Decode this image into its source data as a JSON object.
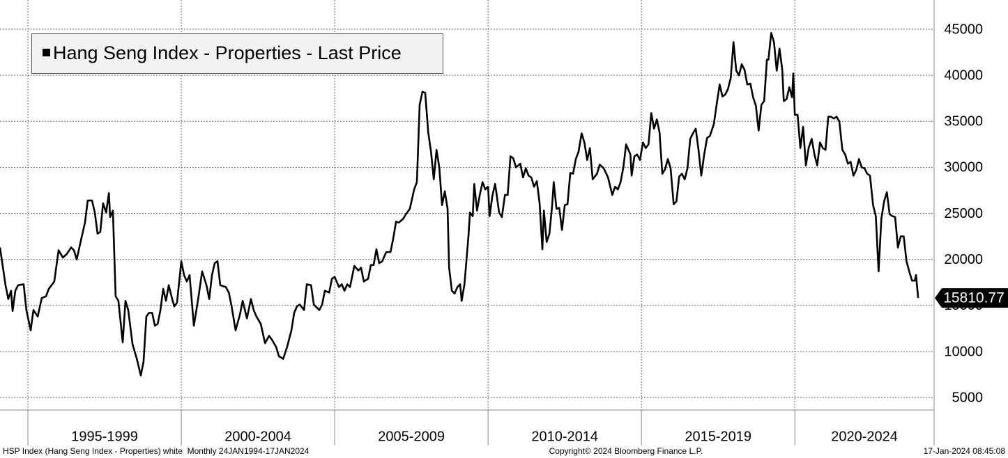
{
  "chart_data": {
    "type": "line",
    "series": [
      {
        "name": "Hang Seng Index - Properties - Last Price",
        "color": "#000000",
        "x": [
          1994.09,
          1994.27,
          1994.36,
          1994.45,
          1994.5,
          1994.59,
          1994.68,
          1994.86,
          1994.95,
          1995.09,
          1995.18,
          1995.32,
          1995.45,
          1995.59,
          1995.68,
          1995.86,
          1996.0,
          1996.14,
          1996.27,
          1996.41,
          1996.5,
          1996.59,
          1996.73,
          1996.86,
          1996.95,
          1997.09,
          1997.18,
          1997.27,
          1997.36,
          1997.45,
          1997.55,
          1997.64,
          1997.68,
          1997.77,
          1997.86,
          1997.95,
          1998.09,
          1998.18,
          1998.27,
          1998.41,
          1998.55,
          1998.68,
          1998.77,
          1998.86,
          1998.95,
          1999.05,
          1999.14,
          1999.23,
          1999.32,
          1999.41,
          1999.5,
          1999.59,
          1999.68,
          1999.77,
          1999.86,
          2000.0,
          2000.09,
          2000.18,
          2000.27,
          2000.41,
          2000.55,
          2000.68,
          2000.82,
          2000.91,
          2001.0,
          2001.09,
          2001.18,
          2001.27,
          2001.45,
          2001.55,
          2001.64,
          2001.77,
          2001.91,
          2002.0,
          2002.14,
          2002.27,
          2002.36,
          2002.45,
          2002.59,
          2002.73,
          2002.86,
          2002.95,
          2003.09,
          2003.18,
          2003.32,
          2003.45,
          2003.59,
          2003.68,
          2003.77,
          2003.86,
          2004.0,
          2004.09,
          2004.23,
          2004.32,
          2004.5,
          2004.59,
          2004.68,
          2004.82,
          2004.91,
          2005.0,
          2005.14,
          2005.23,
          2005.32,
          2005.41,
          2005.5,
          2005.64,
          2005.77,
          2005.86,
          2005.95,
          2006.09,
          2006.18,
          2006.27,
          2006.36,
          2006.45,
          2006.55,
          2006.68,
          2006.82,
          2006.91,
          2007.0,
          2007.09,
          2007.23,
          2007.32,
          2007.45,
          2007.59,
          2007.68,
          2007.77,
          2007.86,
          2007.95,
          2008.05,
          2008.14,
          2008.23,
          2008.32,
          2008.41,
          2008.5,
          2008.59,
          2008.68,
          2008.73,
          2008.82,
          2008.91,
          2009.0,
          2009.09,
          2009.14,
          2009.23,
          2009.36,
          2009.41,
          2009.5,
          2009.55,
          2009.64,
          2009.73,
          2009.82,
          2009.91,
          2010.0,
          2010.05,
          2010.14,
          2010.23,
          2010.36,
          2010.45,
          2010.55,
          2010.64,
          2010.73,
          2010.82,
          2010.91,
          2011.05,
          2011.14,
          2011.23,
          2011.32,
          2011.41,
          2011.5,
          2011.59,
          2011.68,
          2011.77,
          2011.82,
          2011.91,
          2012.0,
          2012.09,
          2012.14,
          2012.23,
          2012.32,
          2012.41,
          2012.5,
          2012.59,
          2012.68,
          2012.77,
          2012.86,
          2012.95,
          2013.05,
          2013.14,
          2013.23,
          2013.32,
          2013.41,
          2013.55,
          2013.64,
          2013.77,
          2013.91,
          2014.05,
          2014.14,
          2014.23,
          2014.32,
          2014.41,
          2014.5,
          2014.64,
          2014.68,
          2014.77,
          2014.86,
          2014.95,
          2015.05,
          2015.14,
          2015.23,
          2015.32,
          2015.41,
          2015.5,
          2015.59,
          2015.68,
          2015.77,
          2015.86,
          2015.95,
          2016.05,
          2016.14,
          2016.23,
          2016.32,
          2016.41,
          2016.5,
          2016.59,
          2016.68,
          2016.77,
          2016.86,
          2016.95,
          2017.05,
          2017.14,
          2017.23,
          2017.36,
          2017.45,
          2017.55,
          2017.64,
          2017.73,
          2017.82,
          2017.91,
          2018.0,
          2018.09,
          2018.18,
          2018.27,
          2018.36,
          2018.45,
          2018.55,
          2018.64,
          2018.73,
          2018.82,
          2018.91,
          2019.0,
          2019.09,
          2019.14,
          2019.23,
          2019.32,
          2019.41,
          2019.5,
          2019.59,
          2019.64,
          2019.73,
          2019.82,
          2019.91,
          2019.95,
          2020.0,
          2020.09,
          2020.18,
          2020.27,
          2020.36,
          2020.45,
          2020.55,
          2020.64,
          2020.73,
          2020.82,
          2020.91,
          2021.0,
          2021.09,
          2021.18,
          2021.27,
          2021.36,
          2021.45,
          2021.55,
          2021.64,
          2021.73,
          2021.82,
          2021.91,
          2022.0,
          2022.09,
          2022.18,
          2022.27,
          2022.36,
          2022.45,
          2022.55,
          2022.64,
          2022.73,
          2022.82,
          2022.91,
          2023.0,
          2023.09,
          2023.18,
          2023.27,
          2023.36,
          2023.45,
          2023.55,
          2023.64,
          2023.73,
          2023.82,
          2023.91,
          2023.95,
          2024.02
        ],
        "values": [
          21300,
          17200,
          15700,
          16600,
          14400,
          16600,
          17200,
          17300,
          14500,
          12300,
          14500,
          13800,
          15800,
          16000,
          16800,
          17600,
          21000,
          20200,
          20600,
          21300,
          21000,
          20000,
          22100,
          24000,
          26400,
          26400,
          25100,
          22800,
          23000,
          26100,
          25100,
          27200,
          24600,
          25300,
          16000,
          15500,
          11000,
          15500,
          14500,
          10800,
          9200,
          7400,
          8900,
          13800,
          14200,
          14200,
          12800,
          13000,
          14500,
          16800,
          15500,
          17200,
          16000,
          14900,
          15300,
          19800,
          18300,
          17600,
          18300,
          12800,
          15700,
          18700,
          17200,
          15700,
          18300,
          19600,
          19800,
          17200,
          17000,
          16400,
          14900,
          12300,
          14000,
          15500,
          13600,
          15700,
          14500,
          13800,
          13000,
          10900,
          11700,
          11300,
          10500,
          9500,
          9200,
          10500,
          12300,
          14200,
          14900,
          15100,
          14500,
          17300,
          17200,
          15100,
          14500,
          15100,
          16600,
          16400,
          17900,
          18100,
          17000,
          17300,
          16600,
          17300,
          17000,
          19300,
          18800,
          19100,
          17600,
          17900,
          19400,
          19400,
          21100,
          19600,
          19800,
          20800,
          20800,
          22300,
          24100,
          24000,
          24400,
          24900,
          25500,
          27600,
          28400,
          36800,
          38200,
          38100,
          33800,
          31700,
          28700,
          31900,
          30000,
          25900,
          27400,
          25500,
          19100,
          16600,
          16300,
          17000,
          17300,
          15500,
          17300,
          22500,
          25100,
          24700,
          28200,
          25300,
          27000,
          28400,
          27600,
          27900,
          24700,
          26900,
          28200,
          25100,
          24600,
          27000,
          27000,
          31200,
          31000,
          30000,
          30400,
          28900,
          29900,
          29100,
          28900,
          27900,
          28500,
          26100,
          21100,
          25300,
          21900,
          22800,
          25900,
          28400,
          25500,
          25600,
          23200,
          25900,
          26000,
          29400,
          29300,
          30900,
          31700,
          33700,
          32700,
          30800,
          32100,
          28700,
          29300,
          30300,
          29900,
          28900,
          27000,
          27900,
          27600,
          28400,
          30000,
          32500,
          31400,
          29100,
          31200,
          31400,
          30800,
          32700,
          32100,
          32500,
          35900,
          34200,
          35200,
          33800,
          29300,
          29800,
          30900,
          29900,
          26000,
          26300,
          29000,
          29300,
          28700,
          29900,
          33100,
          33700,
          34200,
          31900,
          29100,
          31500,
          33200,
          33400,
          34700,
          36800,
          39000,
          37700,
          37900,
          38500,
          39700,
          43600,
          40500,
          40000,
          41200,
          40600,
          39000,
          39100,
          37600,
          36700,
          34000,
          36800,
          37200,
          41700,
          41700,
          44600,
          43600,
          40500,
          42900,
          40600,
          37200,
          37400,
          38700,
          37600,
          40200,
          35700,
          35700,
          32100,
          34400,
          30200,
          32100,
          33100,
          31400,
          30200,
          32700,
          32100,
          31900,
          35500,
          35500,
          35300,
          35500,
          35000,
          31900,
          31400,
          30400,
          30600,
          29100,
          29700,
          30900,
          30000,
          29900,
          29300,
          29100,
          25900,
          24700,
          18700,
          24400,
          26300,
          27300,
          24900,
          24700,
          24600,
          21300,
          22500,
          22500,
          19800,
          18700,
          17700,
          17700,
          18300,
          15810.77
        ]
      }
    ],
    "xlim": [
      1994.09,
      2024.54
    ],
    "xticks": [
      1995,
      2000,
      2005,
      2010,
      2015,
      2020
    ],
    "x_period_labels": [
      "1995-1999",
      "2000-2004",
      "2005-2009",
      "2010-2014",
      "2015-2019",
      "2020-2024"
    ],
    "ylim": [
      3650,
      48175
    ],
    "yticks": [
      5000,
      10000,
      15000,
      20000,
      25000,
      30000,
      35000,
      40000,
      45000
    ],
    "grid": true,
    "legend": "top-left",
    "footer_left": "HSP Index (Hang Seng Index - Properties) white  Monthly 24JAN1994-17JAN2024",
    "footer_center": "Copyright© 2024 Bloomberg Finance L.P.",
    "footer_right": "17-Jan-2024 08:45:08"
  }
}
